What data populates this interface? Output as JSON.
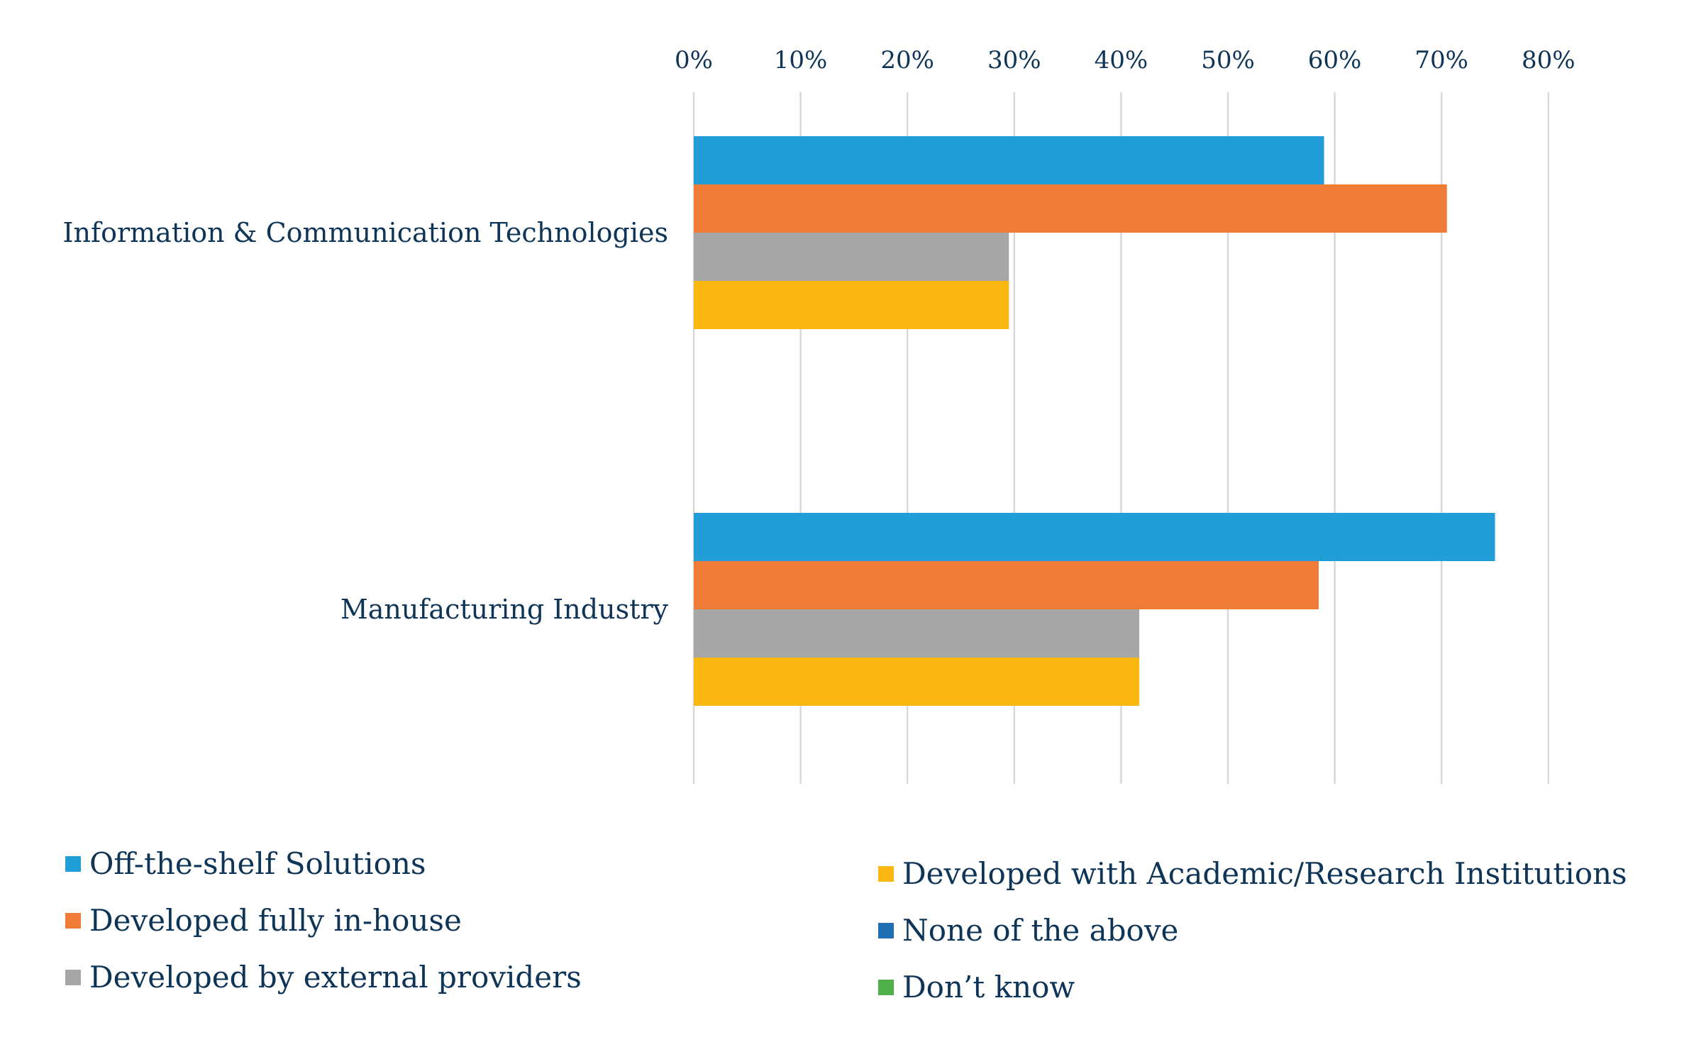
{
  "chart_data": {
    "type": "bar",
    "orientation": "horizontal",
    "title": "",
    "xlabel": "",
    "ylabel": "",
    "categories": [
      "Information & Communication Technologies",
      "Manufacturing Industry"
    ],
    "series": [
      {
        "name": "Off-the-shelf Solutions",
        "color": "#219ed8",
        "values": [
          59,
          75
        ]
      },
      {
        "name": "Developed fully in-house",
        "color": "#ee7b36",
        "values": [
          70.5,
          58.5
        ]
      },
      {
        "name": "Developed by external providers",
        "color": "#a6a6a6",
        "values": [
          29.5,
          41.7
        ]
      },
      {
        "name": "Developed with Academic/Research Institutions",
        "color": "#fbb812",
        "values": [
          29.5,
          41.7
        ]
      },
      {
        "name": "None of the above",
        "color": "#1f6fb5",
        "values": [
          0,
          0
        ]
      },
      {
        "name": "Don’t know",
        "color": "#4db04a",
        "values": [
          0,
          0
        ]
      }
    ],
    "xlim": [
      0,
      80
    ],
    "xticks": [
      "0%",
      "10%",
      "20%",
      "30%",
      "40%",
      "50%",
      "60%",
      "70%",
      "80%"
    ],
    "grid": true,
    "axis_position": "top",
    "legend_position": "bottom"
  }
}
